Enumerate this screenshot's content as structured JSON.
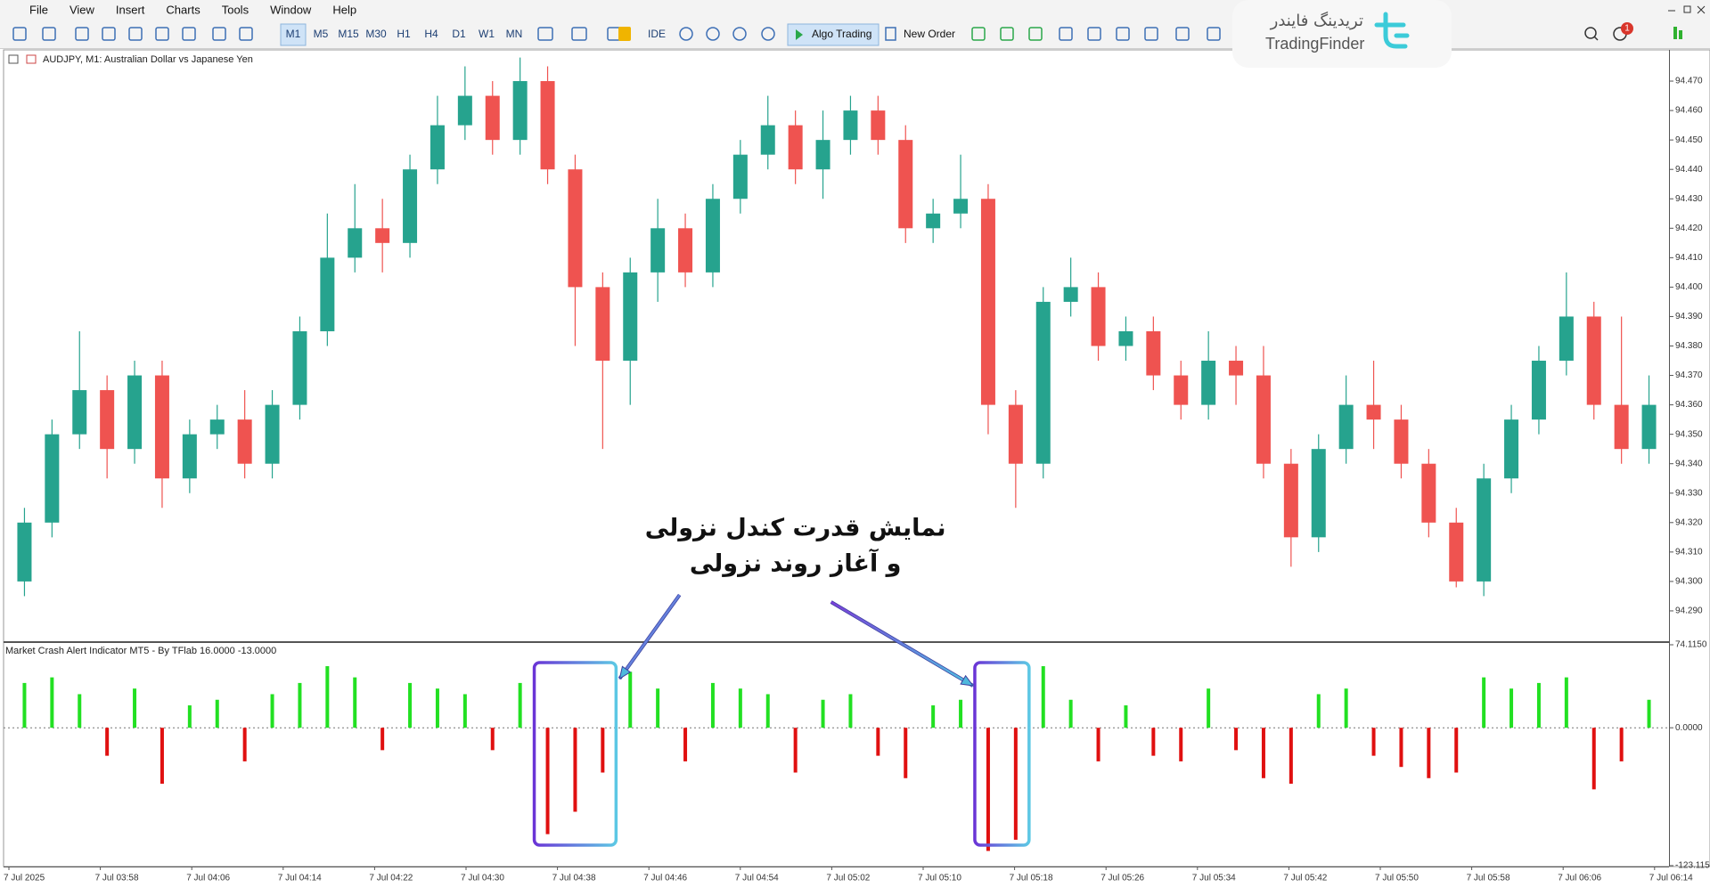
{
  "menu": [
    "File",
    "View",
    "Insert",
    "Charts",
    "Tools",
    "Window",
    "Help"
  ],
  "toolbar": {
    "timeframes": [
      "M1",
      "M5",
      "M15",
      "M30",
      "H1",
      "H4",
      "D1",
      "W1",
      "MN"
    ],
    "ide": "IDE",
    "algo_trading": "Algo Trading",
    "new_order": "New Order",
    "notifications": "1"
  },
  "logo": {
    "name_fa": "تریدینگ فایندر",
    "name_en": "TradingFinder"
  },
  "annotation": {
    "line1": "نمایش قدرت کندل نزولی",
    "line2": "و آغاز روند نزولی"
  },
  "time_axis": [
    "7 Jul 2025",
    "7 Jul 03:58",
    "7 Jul 04:06",
    "7 Jul 04:14",
    "7 Jul 04:22",
    "7 Jul 04:30",
    "7 Jul 04:38",
    "7 Jul 04:46",
    "7 Jul 04:54",
    "7 Jul 05:02",
    "7 Jul 05:10",
    "7 Jul 05:18",
    "7 Jul 05:26",
    "7 Jul 05:34",
    "7 Jul 05:42",
    "7 Jul 05:50",
    "7 Jul 05:58",
    "7 Jul 06:06",
    "7 Jul 06:14"
  ],
  "chart_data": [
    {
      "type": "candlestick",
      "title": "AUDJPY, M1:  Australian Dollar vs Japanese Yen",
      "up_color": "#26a38e",
      "down_color": "#ef5350",
      "ylim": [
        94.28,
        94.48
      ],
      "yticks": [
        {
          "value": 94.29,
          "label": "94.290"
        },
        {
          "value": 94.3,
          "label": "94.300"
        },
        {
          "value": 94.31,
          "label": "94.310"
        },
        {
          "value": 94.32,
          "label": "94.320"
        },
        {
          "value": 94.33,
          "label": "94.330"
        },
        {
          "value": 94.34,
          "label": "94.340"
        },
        {
          "value": 94.35,
          "label": "94.350"
        },
        {
          "value": 94.36,
          "label": "94.360"
        },
        {
          "value": 94.37,
          "label": "94.370"
        },
        {
          "value": 94.38,
          "label": "94.380"
        },
        {
          "value": 94.39,
          "label": "94.390"
        },
        {
          "value": 94.4,
          "label": "94.400"
        },
        {
          "value": 94.41,
          "label": "94.410"
        },
        {
          "value": 94.42,
          "label": "94.420"
        },
        {
          "value": 94.43,
          "label": "94.430"
        },
        {
          "value": 94.44,
          "label": "94.440"
        },
        {
          "value": 94.45,
          "label": "94.450"
        },
        {
          "value": 94.46,
          "label": "94.460"
        },
        {
          "value": 94.47,
          "label": "94.470"
        }
      ],
      "open": [
        94.3,
        94.32,
        94.35,
        94.365,
        94.345,
        94.37,
        94.335,
        94.35,
        94.355,
        94.34,
        94.36,
        94.385,
        94.41,
        94.42,
        94.415,
        94.44,
        94.455,
        94.465,
        94.45,
        94.47,
        94.44,
        94.4,
        94.375,
        94.405,
        94.42,
        94.405,
        94.43,
        94.445,
        94.455,
        94.44,
        94.45,
        94.46,
        94.45,
        94.42,
        94.425,
        94.43,
        94.36,
        94.34,
        94.395,
        94.4,
        94.38,
        94.385,
        94.37,
        94.36,
        94.375,
        94.37,
        94.34,
        94.315,
        94.345,
        94.36,
        94.355,
        94.34,
        94.32,
        94.3,
        94.335,
        94.355,
        94.375,
        94.39,
        94.36,
        94.345
      ],
      "high": [
        94.325,
        94.355,
        94.385,
        94.37,
        94.375,
        94.375,
        94.355,
        94.36,
        94.365,
        94.365,
        94.39,
        94.425,
        94.435,
        94.43,
        94.445,
        94.465,
        94.475,
        94.47,
        94.478,
        94.475,
        94.445,
        94.405,
        94.41,
        94.43,
        94.425,
        94.435,
        94.45,
        94.465,
        94.46,
        94.46,
        94.465,
        94.465,
        94.455,
        94.43,
        94.445,
        94.435,
        94.365,
        94.4,
        94.41,
        94.405,
        94.39,
        94.39,
        94.375,
        94.385,
        94.38,
        94.38,
        94.345,
        94.35,
        94.37,
        94.375,
        94.36,
        94.345,
        94.325,
        94.34,
        94.36,
        94.38,
        94.405,
        94.395,
        94.39,
        94.37
      ],
      "low": [
        94.295,
        94.315,
        94.345,
        94.335,
        94.34,
        94.325,
        94.33,
        94.345,
        94.335,
        94.335,
        94.355,
        94.38,
        94.405,
        94.405,
        94.41,
        94.435,
        94.45,
        94.445,
        94.445,
        94.435,
        94.38,
        94.345,
        94.36,
        94.395,
        94.4,
        94.4,
        94.425,
        94.44,
        94.435,
        94.43,
        94.445,
        94.445,
        94.415,
        94.415,
        94.42,
        94.35,
        94.325,
        94.335,
        94.39,
        94.375,
        94.375,
        94.365,
        94.355,
        94.355,
        94.36,
        94.335,
        94.305,
        94.31,
        94.34,
        94.345,
        94.335,
        94.315,
        94.298,
        94.295,
        94.33,
        94.35,
        94.37,
        94.355,
        94.34,
        94.34
      ],
      "close": [
        94.32,
        94.35,
        94.365,
        94.345,
        94.37,
        94.335,
        94.35,
        94.355,
        94.34,
        94.36,
        94.385,
        94.41,
        94.42,
        94.415,
        94.44,
        94.455,
        94.465,
        94.45,
        94.47,
        94.44,
        94.4,
        94.375,
        94.405,
        94.42,
        94.405,
        94.43,
        94.445,
        94.455,
        94.44,
        94.45,
        94.46,
        94.45,
        94.42,
        94.425,
        94.43,
        94.36,
        94.34,
        94.395,
        94.4,
        94.38,
        94.385,
        94.37,
        94.36,
        94.375,
        94.37,
        94.34,
        94.315,
        94.345,
        94.36,
        94.355,
        94.34,
        94.32,
        94.3,
        94.335,
        94.355,
        94.375,
        94.39,
        94.36,
        94.345,
        94.36
      ]
    },
    {
      "type": "bar",
      "title": "Market Crash Alert Indicator MT5 - By TFlab 16.0000 -13.0000",
      "up_color": "#22e022",
      "down_color": "#e01010",
      "ylim": [
        -123.115,
        74.115
      ],
      "yticks": [
        {
          "value": 74.115,
          "label": "74.1150"
        },
        {
          "value": 0,
          "label": "0.0000"
        },
        {
          "value": -123.115,
          "label": "-123.1150"
        }
      ],
      "values": [
        40,
        45,
        30,
        -25,
        35,
        -50,
        20,
        25,
        -30,
        30,
        40,
        55,
        45,
        -20,
        40,
        35,
        30,
        -20,
        40,
        -95,
        -75,
        -40,
        50,
        35,
        -30,
        40,
        35,
        30,
        -40,
        25,
        30,
        -25,
        -45,
        20,
        25,
        -110,
        -100,
        55,
        25,
        -30,
        20,
        -25,
        -30,
        35,
        -20,
        -45,
        -50,
        30,
        35,
        -25,
        -35,
        -45,
        -40,
        45,
        35,
        40,
        45,
        -55,
        -30,
        25
      ]
    }
  ]
}
